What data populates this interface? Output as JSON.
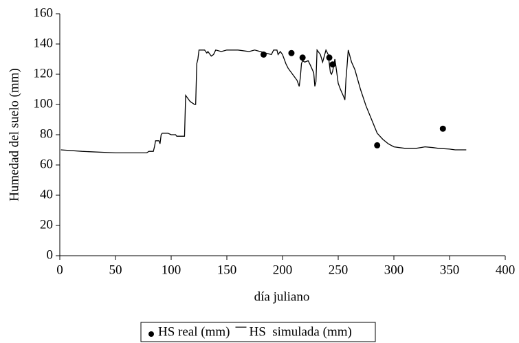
{
  "chart_data": {
    "type": "line",
    "xlabel": "día juliano",
    "ylabel": "Humedad  del suelo (mm)",
    "xlim": [
      0,
      400
    ],
    "xticks": [
      0,
      50,
      100,
      150,
      200,
      250,
      300,
      350,
      400
    ],
    "ylim": [
      0,
      160
    ],
    "yticks": [
      0,
      20,
      40,
      60,
      80,
      100,
      120,
      140,
      160
    ],
    "legend": "bottom",
    "series": [
      {
        "name": "HS real (mm)",
        "type": "scatter",
        "color": "#000000",
        "x": [
          183,
          208,
          218,
          242,
          245,
          285,
          344
        ],
        "values": [
          133,
          134,
          131,
          131,
          126.5,
          73,
          84
        ]
      },
      {
        "name": "HS  simulada (mm)",
        "type": "line",
        "color": "#000000",
        "x": [
          1,
          20,
          50,
          78,
          80,
          84,
          85,
          86,
          89,
          90,
          91,
          92,
          97,
          100,
          104,
          105,
          112,
          113,
          115,
          117,
          121,
          122,
          123,
          124,
          125,
          130,
          132,
          133,
          136,
          138,
          140,
          145,
          150,
          160,
          170,
          175,
          180,
          185,
          190,
          192,
          195,
          196,
          198,
          200,
          203,
          205,
          210,
          213,
          215,
          216,
          217,
          218,
          220,
          223,
          225,
          228,
          229,
          230,
          231,
          234,
          236,
          239,
          241,
          243,
          244,
          245,
          247,
          248,
          250,
          252,
          255,
          256,
          257,
          258,
          259,
          262,
          265,
          270,
          275,
          280,
          285,
          290,
          295,
          300,
          310,
          320,
          328,
          335,
          340,
          350,
          355,
          365
        ],
        "values": [
          70,
          69,
          68,
          68,
          69,
          69,
          72,
          76,
          76,
          74,
          80,
          81,
          81,
          80,
          80,
          79,
          79,
          106,
          104,
          102,
          100,
          100,
          127,
          130,
          136,
          136,
          134,
          135,
          132,
          133,
          136,
          135,
          136,
          136,
          135,
          136,
          135,
          134,
          133,
          136,
          136,
          133,
          135,
          133,
          127,
          124,
          119,
          116,
          112,
          118,
          127,
          129,
          128,
          129,
          126,
          121,
          112,
          115,
          136,
          133,
          128,
          136,
          133,
          121,
          120,
          122,
          130,
          125,
          114,
          110,
          105,
          103,
          117,
          126,
          136,
          128,
          123,
          110,
          99,
          90,
          81,
          77,
          74,
          72,
          71,
          71,
          72,
          71.5,
          71,
          70.5,
          70,
          70
        ]
      }
    ]
  }
}
